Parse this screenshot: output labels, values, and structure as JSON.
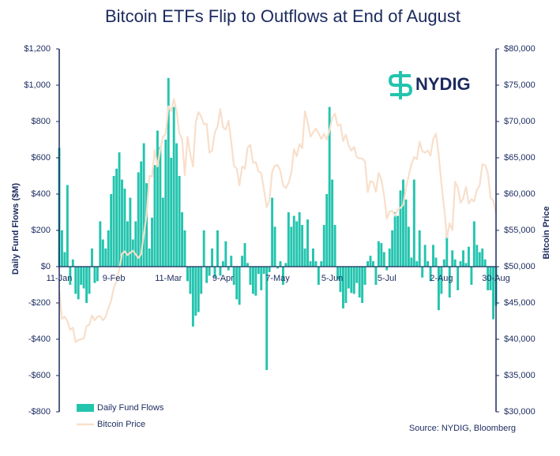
{
  "chart_data": {
    "type": "bar",
    "title": "Bitcoin ETFs Flip to Outflows at End of August",
    "logo": "NYDIG",
    "source": "Source: NYDIG, Bloomberg",
    "y_label": "Daily Fund Flows ($M)",
    "y2_label": "Bitcoin Price",
    "categories": [
      "11-Jan",
      null,
      null,
      null,
      null,
      null,
      null,
      null,
      null,
      null,
      null,
      null,
      null,
      null,
      null,
      null,
      null,
      null,
      null,
      null,
      "9-Feb",
      null,
      null,
      null,
      null,
      null,
      null,
      null,
      null,
      null,
      null,
      null,
      null,
      null,
      null,
      null,
      null,
      null,
      null,
      null,
      "11-Mar",
      null,
      null,
      null,
      null,
      null,
      null,
      null,
      null,
      null,
      null,
      null,
      null,
      null,
      null,
      null,
      null,
      null,
      null,
      null,
      "9-Apr",
      null,
      null,
      null,
      null,
      null,
      null,
      null,
      null,
      null,
      null,
      null,
      null,
      null,
      null,
      null,
      null,
      null,
      null,
      null,
      "7-May",
      null,
      null,
      null,
      null,
      null,
      null,
      null,
      null,
      null,
      null,
      null,
      null,
      null,
      null,
      null,
      null,
      null,
      null,
      null,
      "5-Jun",
      null,
      null,
      null,
      null,
      null,
      null,
      null,
      null,
      null,
      null,
      null,
      null,
      null,
      null,
      null,
      null,
      null,
      null,
      null,
      "5-Jul",
      null,
      null,
      null,
      null,
      null,
      null,
      null,
      null,
      null,
      null,
      null,
      null,
      null,
      null,
      null,
      null,
      null,
      null,
      null,
      "2-Aug",
      null,
      null,
      null,
      null,
      null,
      null,
      null,
      null,
      null,
      null,
      null,
      null,
      null,
      null,
      null,
      null,
      null,
      null,
      null,
      "30-Aug"
    ],
    "series": [
      {
        "name": "Daily Fund Flows",
        "type": "bar",
        "color": "#23c4ae",
        "values": [
          655,
          200,
          80,
          450,
          -100,
          40,
          -150,
          -180,
          -100,
          -120,
          -200,
          -150,
          100,
          -90,
          -80,
          250,
          150,
          100,
          200,
          400,
          500,
          540,
          630,
          480,
          430,
          250,
          380,
          150,
          250,
          520,
          580,
          680,
          460,
          100,
          270,
          560,
          750,
          660,
          380,
          700,
          1040,
          600,
          880,
          680,
          500,
          300,
          200,
          -80,
          -150,
          -330,
          -270,
          -250,
          -150,
          200,
          -90,
          -50,
          100,
          -60,
          200,
          -50,
          30,
          140,
          -20,
          60,
          -100,
          -180,
          -210,
          60,
          130,
          20,
          -100,
          -150,
          -160,
          -40,
          -130,
          -40,
          -570,
          -30,
          380,
          220,
          -10,
          30,
          -100,
          20,
          300,
          220,
          280,
          250,
          300,
          230,
          100,
          260,
          30,
          100,
          30,
          -100,
          30,
          230,
          400,
          880,
          480,
          230,
          -70,
          -140,
          -230,
          -200,
          -120,
          -145,
          -150,
          -90,
          -170,
          -200,
          -100,
          30,
          60,
          30,
          -100,
          140,
          130,
          80,
          -20,
          100,
          200,
          300,
          280,
          420,
          480,
          370,
          220,
          50,
          480,
          30,
          200,
          -60,
          120,
          30,
          -80,
          120,
          50,
          -240,
          -150,
          40,
          190,
          -170,
          90,
          40,
          -130,
          30,
          90,
          20,
          110,
          -100,
          250,
          120,
          80,
          100,
          40,
          -130,
          -130,
          -290,
          -215
        ]
      },
      {
        "name": "Bitcoin Price",
        "type": "line",
        "axis": "y2",
        "color": "#f8dfcb",
        "values": [
          46600,
          42800,
          43100,
          42500,
          41300,
          41600,
          39600,
          39900,
          40000,
          40100,
          41800,
          42000,
          43300,
          42600,
          43100,
          43200,
          42600,
          43100,
          44300,
          45300,
          47100,
          48000,
          49700,
          51800,
          52100,
          51600,
          51900,
          52200,
          51700,
          51200,
          51700,
          54500,
          57100,
          62500,
          62400,
          66100,
          63800,
          66100,
          67900,
          68300,
          72100,
          71400,
          73100,
          71400,
          68400,
          67600,
          62600,
          67900,
          65500,
          63800,
          69900,
          71300,
          70700,
          69600,
          69700,
          65700,
          66000,
          68500,
          69300,
          71700,
          69200,
          68900,
          70100,
          67200,
          63900,
          63500,
          61200,
          63800,
          63500,
          66400,
          66800,
          64300,
          64400,
          63100,
          62900,
          60600,
          58200,
          59100,
          63100,
          63900,
          64000,
          63200,
          61200,
          60800,
          61500,
          62900,
          66200,
          65200,
          66900,
          66300,
          71400,
          69900,
          67900,
          68500,
          69000,
          68400,
          67600,
          68300,
          67500,
          68800,
          70500,
          71100,
          69400,
          69600,
          67300,
          68200,
          66700,
          66000,
          66500,
          65100,
          64900,
          64900,
          64500,
          60300,
          61800,
          61600,
          60300,
          62900,
          62000,
          59800,
          56600,
          57600,
          57700,
          57000,
          57900,
          58100,
          58500,
          60800,
          62500,
          64100,
          65100,
          64800,
          67200,
          65900,
          65700,
          66000,
          65300,
          67600,
          68300,
          65400,
          61400,
          58100,
          54000,
          56000,
          55000,
          61700,
          60900,
          58800,
          59400,
          61000,
          58700,
          59300,
          59000,
          60600,
          61200,
          64100,
          64000,
          62900,
          59500,
          59100,
          57300
        ]
      }
    ],
    "ylim": [
      -800,
      1200
    ],
    "yticks": [
      {
        "value": -800,
        "label": "-$800"
      },
      {
        "value": -600,
        "label": "-$600"
      },
      {
        "value": -400,
        "label": "-$400"
      },
      {
        "value": -200,
        "label": "-$200"
      },
      {
        "value": 0,
        "label": "$0"
      },
      {
        "value": 200,
        "label": "$200"
      },
      {
        "value": 400,
        "label": "$400"
      },
      {
        "value": 600,
        "label": "$600"
      },
      {
        "value": 800,
        "label": "$800"
      },
      {
        "value": 1000,
        "label": "$1,000"
      },
      {
        "value": 1200,
        "label": "$1,200"
      }
    ],
    "y2lim": [
      30000,
      80000
    ],
    "y2ticks": [
      {
        "value": 30000,
        "label": "$30,000"
      },
      {
        "value": 35000,
        "label": "$35,000"
      },
      {
        "value": 40000,
        "label": "$40,000"
      },
      {
        "value": 45000,
        "label": "$45,000"
      },
      {
        "value": 50000,
        "label": "$50,000"
      },
      {
        "value": 55000,
        "label": "$55,000"
      },
      {
        "value": 60000,
        "label": "$60,000"
      },
      {
        "value": 65000,
        "label": "$65,000"
      },
      {
        "value": 70000,
        "label": "$70,000"
      },
      {
        "value": 75000,
        "label": "$75,000"
      },
      {
        "value": 80000,
        "label": "$80,000"
      }
    ],
    "grid": false,
    "legend": "bottom-left"
  }
}
